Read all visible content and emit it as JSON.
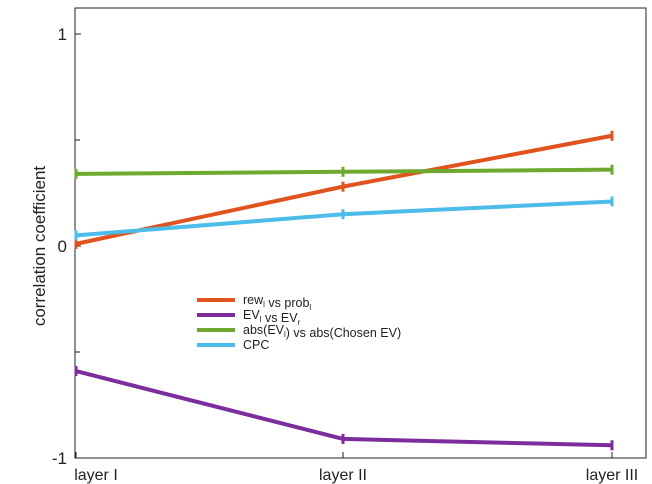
{
  "chart_data": {
    "type": "line",
    "categories": [
      "layer I",
      "layer II",
      "layer III"
    ],
    "ylabel": "correlation coefficient",
    "ylim": [
      -1,
      1
    ],
    "yticks": [
      {
        "value": 1,
        "label": "1"
      },
      {
        "value": 0,
        "label": "0"
      },
      {
        "value": -1,
        "label": "-1"
      }
    ],
    "legend_position": "center-left",
    "series": [
      {
        "name": "rew",
        "legend": {
          "parts": [
            [
              "rew",
              ""
            ],
            [
              "l",
              "sub"
            ],
            [
              " vs prob",
              ""
            ],
            [
              "l",
              "sub"
            ]
          ]
        },
        "color": "#e0531e",
        "values": [
          0.01,
          0.28,
          0.52
        ],
        "err": [
          0.02,
          0.02,
          0.02
        ]
      },
      {
        "name": "EV",
        "legend": {
          "parts": [
            [
              "EV",
              ""
            ],
            [
              "l",
              "sub"
            ],
            [
              " vs EV",
              ""
            ],
            [
              "r",
              "sub"
            ]
          ]
        },
        "color": "#7b2d9e",
        "values": [
          -0.59,
          -0.91,
          -0.94
        ],
        "err": [
          0.02,
          0.02,
          0.02
        ]
      },
      {
        "name": "abs",
        "legend": {
          "parts": [
            [
              "abs(EV",
              ""
            ],
            [
              "l",
              "sub"
            ],
            [
              ") vs abs(Chosen EV)",
              ""
            ]
          ]
        },
        "color": "#6fa82f",
        "values": [
          0.34,
          0.35,
          0.36
        ],
        "err": [
          0.02,
          0.02,
          0.02
        ]
      },
      {
        "name": "CPC",
        "legend": {
          "parts": [
            [
              "CPC",
              ""
            ]
          ]
        },
        "color": "#4cbde8",
        "values": [
          0.05,
          0.15,
          0.21
        ],
        "err": [
          0.02,
          0.02,
          0.02
        ]
      }
    ]
  }
}
